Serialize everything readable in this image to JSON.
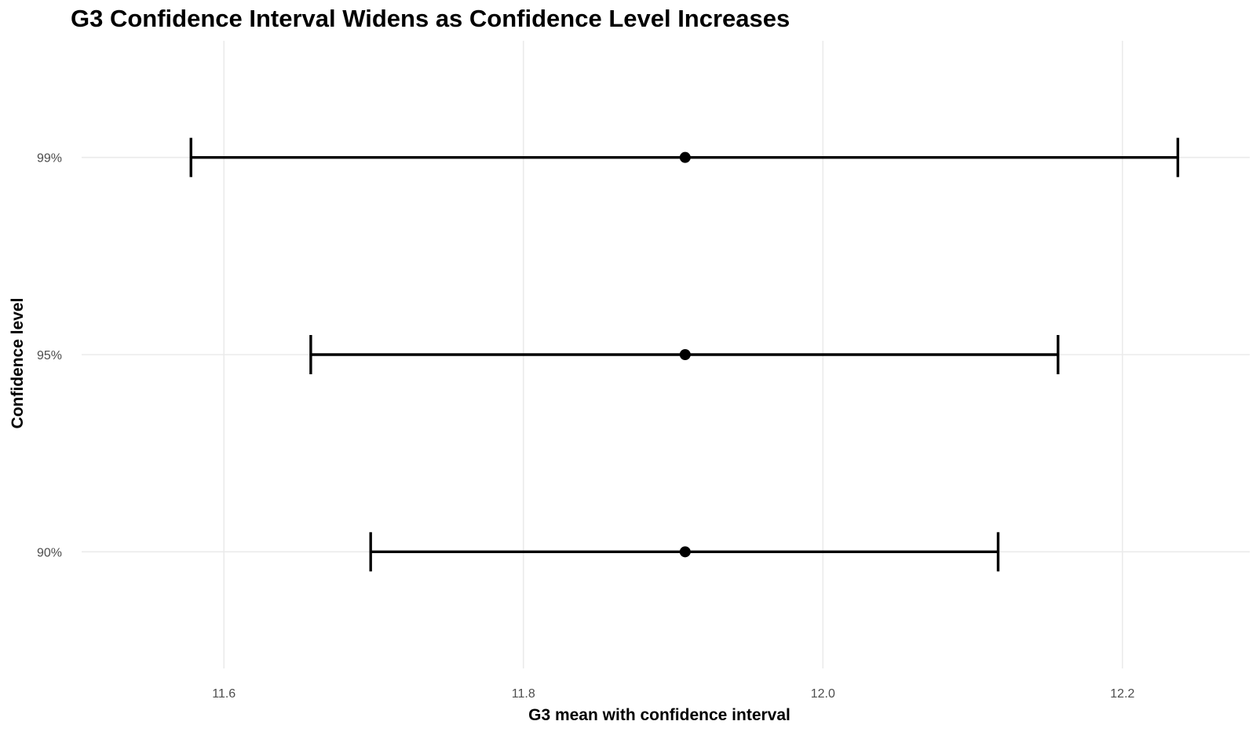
{
  "chart_data": {
    "type": "errorbar",
    "title": "G3 Confidence Interval Widens as Confidence Level Increases",
    "xlabel": "G3 mean with confidence interval",
    "ylabel": "Confidence level",
    "xlim": [
      11.505,
      12.285
    ],
    "x_ticks": [
      "11.6",
      "11.8",
      "12.0",
      "12.2"
    ],
    "categories": [
      "90%",
      "95%",
      "99%"
    ],
    "series": [
      {
        "mean": [
          11.908,
          11.908,
          11.908
        ],
        "lower": [
          11.698,
          11.658,
          11.578
        ],
        "upper": [
          12.117,
          12.157,
          12.237
        ]
      }
    ],
    "grid": true,
    "legend": "none",
    "colors": {
      "mark": "#000000",
      "grid": "#ebebeb",
      "tick_text": "#4d4d4d"
    }
  }
}
